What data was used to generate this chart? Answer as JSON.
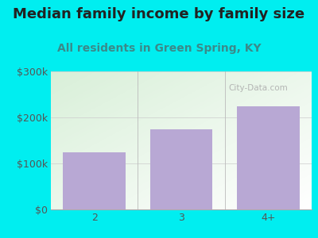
{
  "title": "Median family income by family size",
  "subtitle": "All residents in Green Spring, KY",
  "categories": [
    "2",
    "3",
    "4+"
  ],
  "values": [
    125000,
    175000,
    225000
  ],
  "bar_color": "#b8a8d4",
  "outer_bg": "#00eef0",
  "plot_bg_topleft": "#d8eed8",
  "plot_bg_bottomright": "#ffffff",
  "title_color": "#222222",
  "subtitle_color": "#3a8a8a",
  "tick_color": "#555555",
  "grid_color": "#cccccc",
  "divider_color": "#bbbbbb",
  "ylim": [
    0,
    300000
  ],
  "yticks": [
    0,
    100000,
    200000,
    300000
  ],
  "ytick_labels": [
    "$0",
    "$100k",
    "$200k",
    "$300k"
  ],
  "watermark": "City-Data.com",
  "title_fontsize": 13,
  "subtitle_fontsize": 10,
  "tick_fontsize": 9,
  "bar_width": 0.72
}
